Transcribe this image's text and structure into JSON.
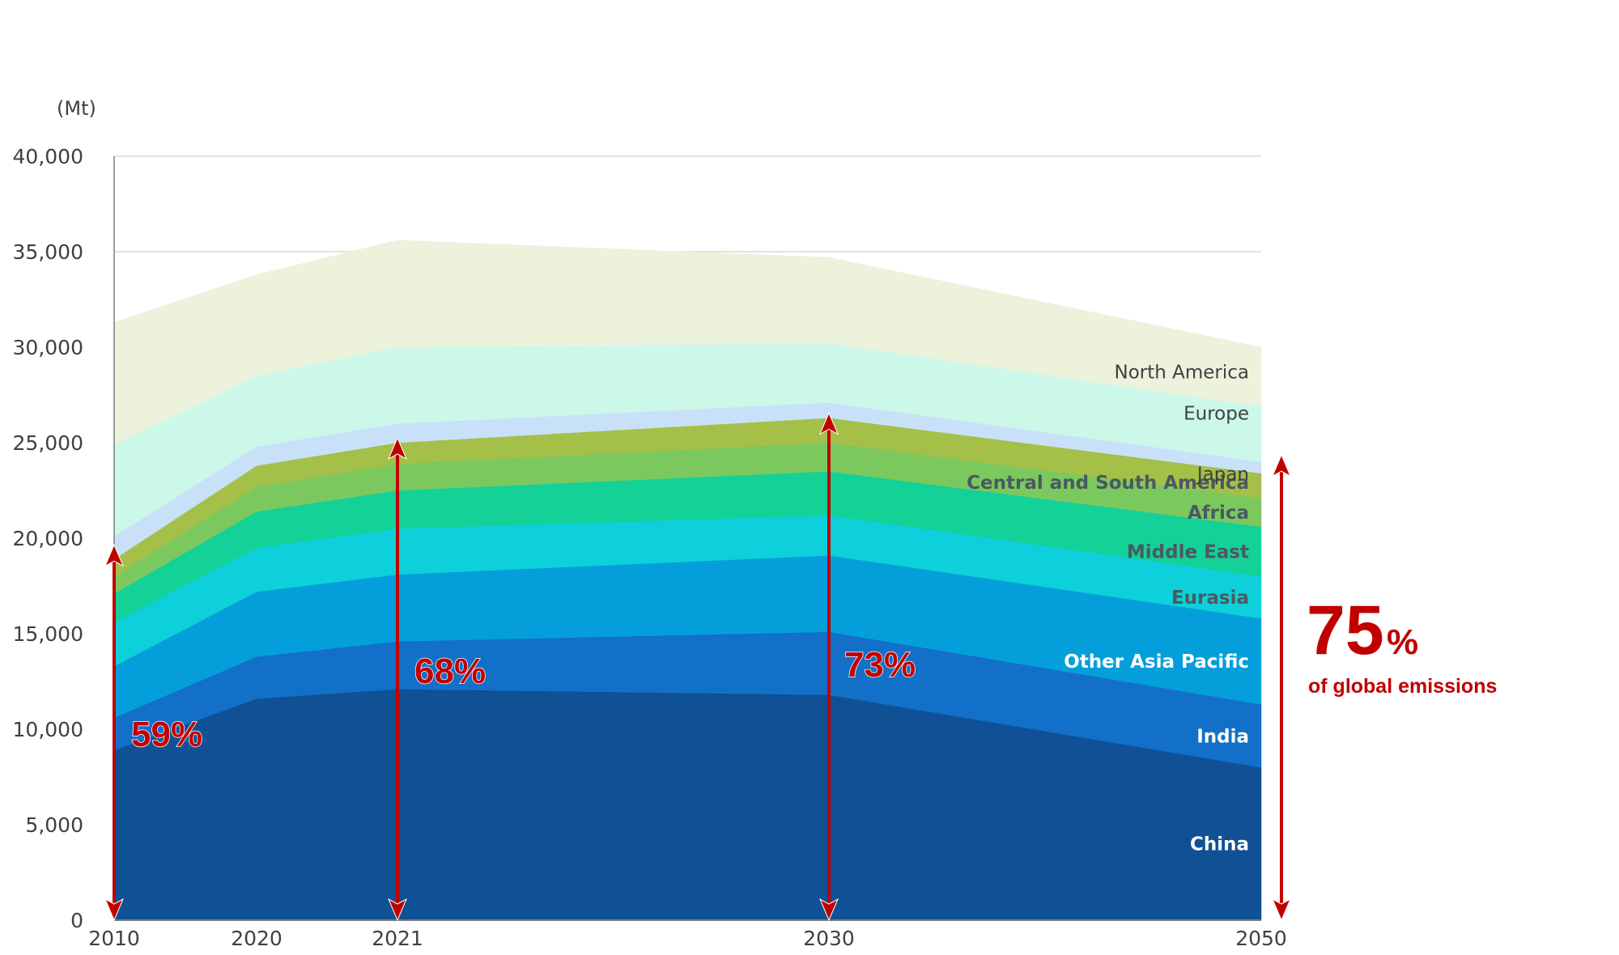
{
  "chart_data": {
    "type": "area",
    "stacked": true,
    "unit_label": "(Mt)",
    "x": [
      "2010",
      "2020",
      "2021",
      "2030",
      "2050"
    ],
    "ylim": [
      0,
      40000
    ],
    "yticks": [
      0,
      5000,
      10000,
      15000,
      20000,
      25000,
      30000,
      35000,
      40000
    ],
    "ytick_labels": [
      "0",
      "5,000",
      "10,000",
      "15,000",
      "20,000",
      "25,000",
      "30,000",
      "35,000",
      "40,000"
    ],
    "grid": "horizontal",
    "series": [
      {
        "name": "China",
        "values": [
          8900,
          11600,
          12100,
          11800,
          8000
        ],
        "color": "#0f5194",
        "label_style": "white"
      },
      {
        "name": "India",
        "values": [
          1700,
          2200,
          2500,
          3300,
          3300
        ],
        "color": "#1270c8",
        "label_style": "white"
      },
      {
        "name": "Other Asia Pacific",
        "values": [
          2700,
          3400,
          3500,
          4000,
          4500
        ],
        "color": "#049fda",
        "label_style": "white"
      },
      {
        "name": "Eurasia",
        "values": [
          2300,
          2300,
          2400,
          2100,
          2200
        ],
        "color": "#0dd0da",
        "label_style": "bold"
      },
      {
        "name": "Middle East",
        "values": [
          1500,
          1900,
          2000,
          2300,
          2600
        ],
        "color": "#13d197",
        "label_style": "bold"
      },
      {
        "name": "Africa",
        "values": [
          900,
          1300,
          1400,
          1500,
          1500
        ],
        "color": "#7bc95e",
        "label_style": "bold"
      },
      {
        "name": "Central and South America",
        "values": [
          900,
          1100,
          1100,
          1300,
          1300
        ],
        "color": "#a4c048",
        "label_style": "bold"
      },
      {
        "name": "Japan",
        "values": [
          1200,
          1000,
          1000,
          800,
          600
        ],
        "color": "#c9e0f9",
        "label_style": "plain"
      },
      {
        "name": "Europe",
        "values": [
          4800,
          3700,
          4000,
          3100,
          2900
        ],
        "color": "#cbf8e9",
        "label_style": "plain"
      },
      {
        "name": "North America",
        "values": [
          6400,
          5300,
          5600,
          4500,
          3100
        ],
        "color": "#ecf2dc",
        "label_style": "plain"
      }
    ],
    "annotations": [
      {
        "x": "2010",
        "text": "59%",
        "arrow_top": 19400
      },
      {
        "x": "2021",
        "text": "68%",
        "arrow_top": 25000
      },
      {
        "x": "2030",
        "text": "73%",
        "arrow_top": 26300
      },
      {
        "x": "2050",
        "big_text": "75",
        "big_suffix": "%",
        "subtext": "of global emissions",
        "arrow_top": 24100
      }
    ],
    "accent_color": "#c00000"
  }
}
